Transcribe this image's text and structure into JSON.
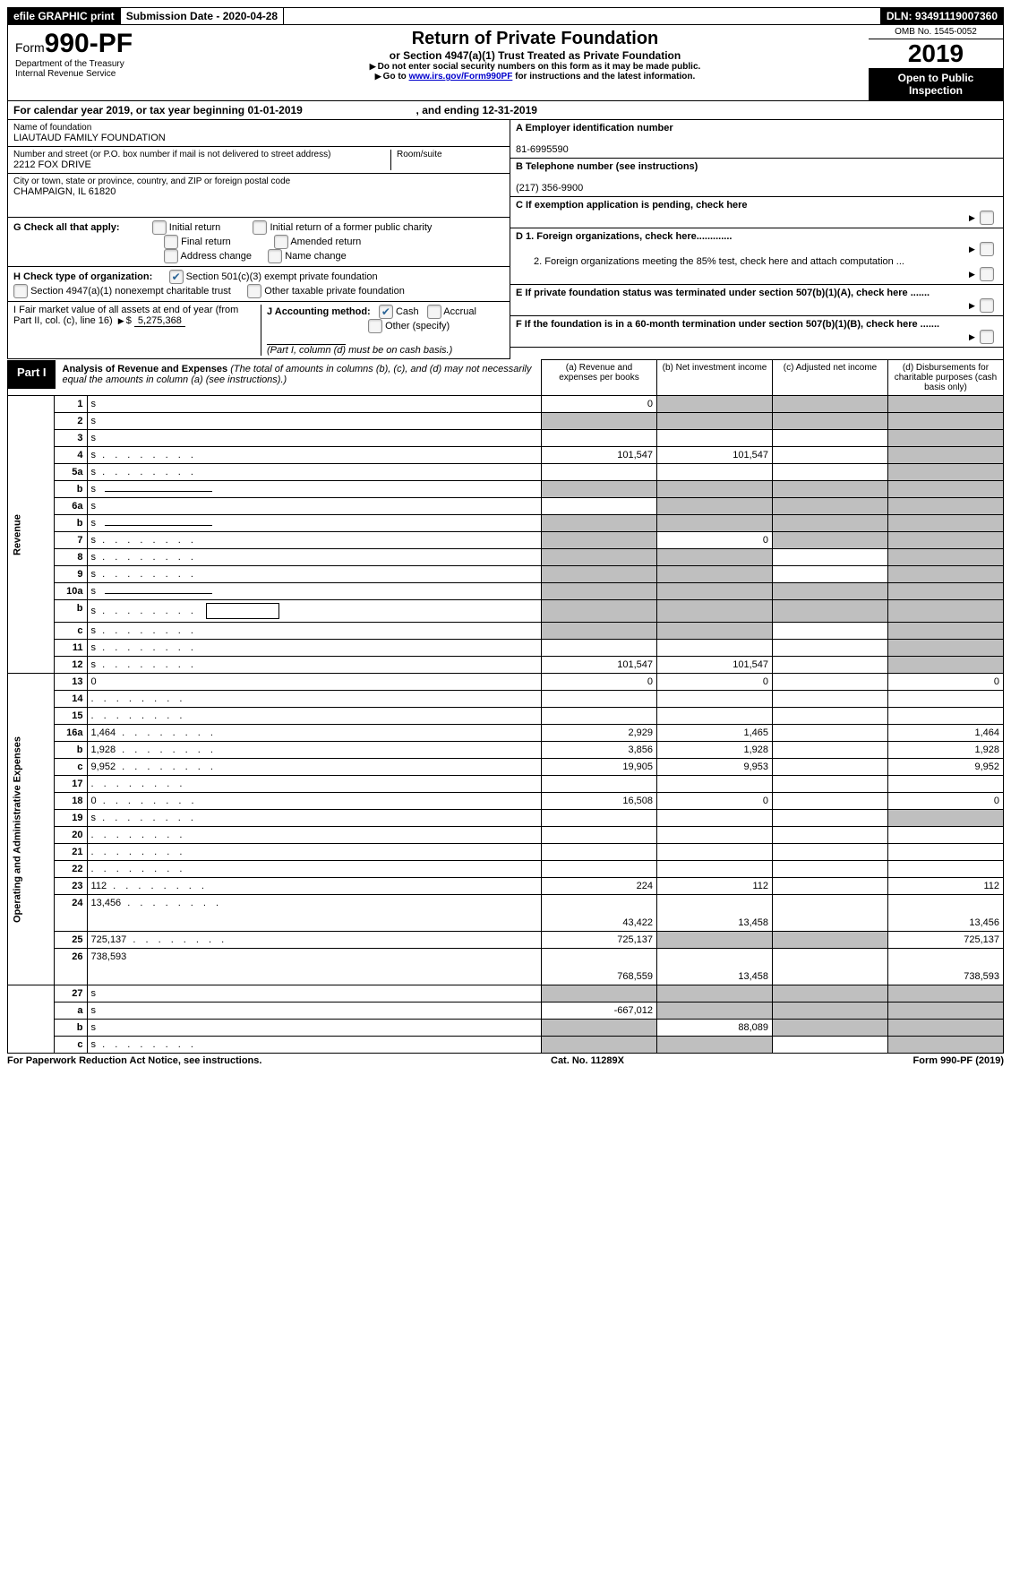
{
  "topbar": {
    "efile": "efile GRAPHIC print",
    "sub_date_label": "Submission Date - ",
    "sub_date": "2020-04-28",
    "dln_label": "DLN: ",
    "dln": "93491119007360"
  },
  "header": {
    "form_word": "Form",
    "form_no": "990-PF",
    "dept": "Department of the Treasury",
    "irs": "Internal Revenue Service",
    "title": "Return of Private Foundation",
    "subtitle": "or Section 4947(a)(1) Trust Treated as Private Foundation",
    "note1": "Do not enter social security numbers on this form as it may be made public.",
    "note2_pre": "Go to ",
    "note2_link": "www.irs.gov/Form990PF",
    "note2_post": " for instructions and the latest information.",
    "omb": "OMB No. 1545-0052",
    "year": "2019",
    "open": "Open to Public Inspection"
  },
  "cal": {
    "text_a": "For calendar year 2019, or tax year beginning ",
    "begin": "01-01-2019",
    "text_b": ", and ending ",
    "end": "12-31-2019"
  },
  "entity": {
    "name_label": "Name of foundation",
    "name": "LIAUTAUD FAMILY FOUNDATION",
    "addr_label": "Number and street (or P.O. box number if mail is not delivered to street address)",
    "addr": "2212 FOX DRIVE",
    "room_label": "Room/suite",
    "city_label": "City or town, state or province, country, and ZIP or foreign postal code",
    "city": "CHAMPAIGN, IL  61820"
  },
  "right": {
    "a_label": "A Employer identification number",
    "a_val": "81-6995590",
    "b_label": "B Telephone number (see instructions)",
    "b_val": "(217) 356-9900",
    "c_label": "C  If exemption application is pending, check here",
    "d1": "D 1. Foreign organizations, check here.............",
    "d2": "2. Foreign organizations meeting the 85% test, check here and attach computation ...",
    "e": "E  If private foundation status was terminated under section 507(b)(1)(A), check here .......",
    "f": "F  If the foundation is in a 60-month termination under section 507(b)(1)(B), check here ......."
  },
  "g": {
    "label": "G Check all that apply:",
    "opts": [
      "Initial return",
      "Initial return of a former public charity",
      "Final return",
      "Amended return",
      "Address change",
      "Name change"
    ]
  },
  "h": {
    "label": "H Check type of organization:",
    "o1": "Section 501(c)(3) exempt private foundation",
    "o2": "Section 4947(a)(1) nonexempt charitable trust",
    "o3": "Other taxable private foundation"
  },
  "i": {
    "label": "I Fair market value of all assets at end of year (from Part II, col. (c), line 16)",
    "val": "5,275,368"
  },
  "j": {
    "label": "J Accounting method:",
    "cash": "Cash",
    "accrual": "Accrual",
    "other": "Other (specify)",
    "note": "(Part I, column (d) must be on cash basis.)"
  },
  "part1": {
    "label": "Part I",
    "title": "Analysis of Revenue and Expenses",
    "note": " (The total of amounts in columns (b), (c), and (d) may not necessarily equal the amounts in column (a) (see instructions).)",
    "col_a": "(a)    Revenue and expenses per books",
    "col_b": "(b)    Net investment income",
    "col_c": "(c)    Adjusted net income",
    "col_d": "(d)    Disbursements for charitable purposes (cash basis only)"
  },
  "sections": {
    "rev": "Revenue",
    "exp": "Operating and Administrative Expenses"
  },
  "rows": [
    {
      "n": "1",
      "d": "s",
      "a": "0",
      "b": "s",
      "c": "s"
    },
    {
      "n": "2",
      "d": "s",
      "a": "s",
      "b": "s",
      "c": "s",
      "raw": true
    },
    {
      "n": "3",
      "d": "s",
      "a": "",
      "b": "",
      "c": ""
    },
    {
      "n": "4",
      "d": "s",
      "dots": true,
      "a": "101,547",
      "b": "101,547",
      "c": ""
    },
    {
      "n": "5a",
      "d": "s",
      "dots": true,
      "a": "",
      "b": "",
      "c": ""
    },
    {
      "n": "b",
      "d": "s",
      "ul": true,
      "a": "s",
      "b": "s",
      "c": "s"
    },
    {
      "n": "6a",
      "d": "s",
      "a": "",
      "b": "s",
      "c": "s"
    },
    {
      "n": "b",
      "d": "s",
      "ul": true,
      "a": "s",
      "b": "s",
      "c": "s"
    },
    {
      "n": "7",
      "d": "s",
      "dots": true,
      "a": "s",
      "b": "0",
      "c": "s"
    },
    {
      "n": "8",
      "d": "s",
      "dots": true,
      "a": "s",
      "b": "s",
      "c": ""
    },
    {
      "n": "9",
      "d": "s",
      "dots": true,
      "a": "s",
      "b": "s",
      "c": ""
    },
    {
      "n": "10a",
      "d": "s",
      "ul": true,
      "a": "s",
      "b": "s",
      "c": "s"
    },
    {
      "n": "b",
      "d": "s",
      "dots": true,
      "box": true,
      "a": "s",
      "b": "s",
      "c": "s"
    },
    {
      "n": "c",
      "d": "s",
      "dots": true,
      "a": "s",
      "b": "s",
      "c": ""
    },
    {
      "n": "11",
      "d": "s",
      "dots": true,
      "a": "",
      "b": "",
      "c": ""
    },
    {
      "n": "12",
      "d": "s",
      "dots": true,
      "a": "101,547",
      "b": "101,547",
      "c": "",
      "raw": true
    },
    {
      "n": "13",
      "d": "0",
      "a": "0",
      "b": "0",
      "c": "",
      "sec": "exp"
    },
    {
      "n": "14",
      "d": "",
      "dots": true,
      "a": "",
      "b": "",
      "c": ""
    },
    {
      "n": "15",
      "d": "",
      "dots": true,
      "a": "",
      "b": "",
      "c": ""
    },
    {
      "n": "16a",
      "d": "1,464",
      "dots": true,
      "a": "2,929",
      "b": "1,465",
      "c": ""
    },
    {
      "n": "b",
      "d": "1,928",
      "dots": true,
      "a": "3,856",
      "b": "1,928",
      "c": ""
    },
    {
      "n": "c",
      "d": "9,952",
      "dots": true,
      "a": "19,905",
      "b": "9,953",
      "c": ""
    },
    {
      "n": "17",
      "d": "",
      "dots": true,
      "a": "",
      "b": "",
      "c": ""
    },
    {
      "n": "18",
      "d": "0",
      "dots": true,
      "a": "16,508",
      "b": "0",
      "c": ""
    },
    {
      "n": "19",
      "d": "s",
      "dots": true,
      "a": "",
      "b": "",
      "c": ""
    },
    {
      "n": "20",
      "d": "",
      "dots": true,
      "a": "",
      "b": "",
      "c": ""
    },
    {
      "n": "21",
      "d": "",
      "dots": true,
      "a": "",
      "b": "",
      "c": ""
    },
    {
      "n": "22",
      "d": "",
      "dots": true,
      "a": "",
      "b": "",
      "c": ""
    },
    {
      "n": "23",
      "d": "112",
      "dots": true,
      "a": "224",
      "b": "112",
      "c": ""
    },
    {
      "n": "24",
      "d": "13,456",
      "dots": true,
      "a": "43,422",
      "b": "13,458",
      "c": "",
      "raw": true,
      "tall": true
    },
    {
      "n": "25",
      "d": "725,137",
      "dots": true,
      "a": "725,137",
      "b": "s",
      "c": "s"
    },
    {
      "n": "26",
      "d": "738,593",
      "a": "768,559",
      "b": "13,458",
      "c": "",
      "raw": true,
      "tall": true
    },
    {
      "n": "27",
      "d": "s",
      "a": "s",
      "b": "s",
      "c": "s",
      "nosec": true
    },
    {
      "n": "a",
      "d": "s",
      "a": "-667,012",
      "b": "s",
      "c": "s",
      "raw": true,
      "nosec": true
    },
    {
      "n": "b",
      "d": "s",
      "a": "s",
      "b": "88,089",
      "c": "s",
      "raw": true,
      "nosec": true
    },
    {
      "n": "c",
      "d": "s",
      "dots": true,
      "a": "s",
      "b": "s",
      "c": "",
      "raw": true,
      "nosec": true
    }
  ],
  "footer": {
    "left": "For Paperwork Reduction Act Notice, see instructions.",
    "mid": "Cat. No. 11289X",
    "right": "Form 990-PF (2019)"
  }
}
